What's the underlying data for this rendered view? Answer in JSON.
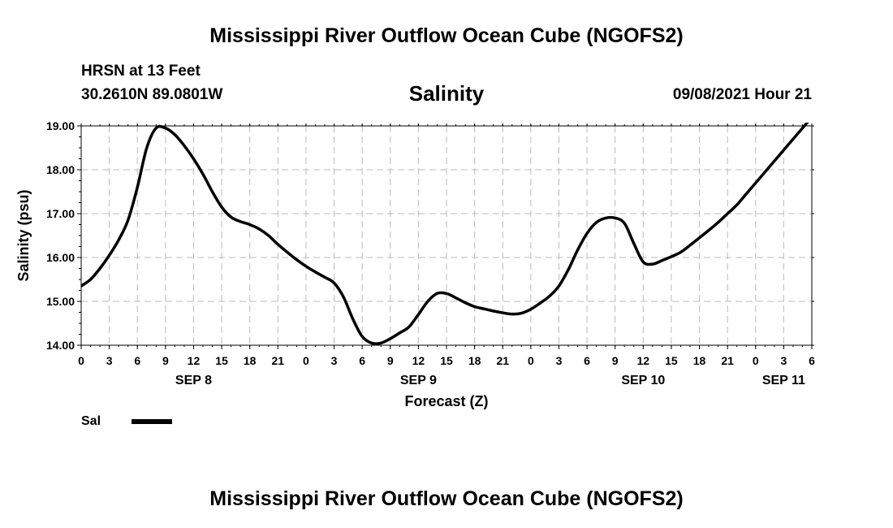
{
  "header": {
    "title": "Mississippi River Outflow Ocean Cube (NGOFS2)",
    "station": "HRSN at 13 Feet",
    "coords": "30.2610N  89.0801W",
    "subtitle": "Salinity",
    "datetime": "09/08/2021 Hour 21"
  },
  "footer": {
    "title": "Mississippi River Outflow Ocean Cube (NGOFS2)"
  },
  "legend": {
    "label": "Sal"
  },
  "chart_data": {
    "type": "line",
    "title": "Salinity",
    "xlabel": "Forecast (Z)",
    "ylabel": "Salinity (psu)",
    "ylim": [
      14.0,
      19.0
    ],
    "xlim": [
      0,
      78
    ],
    "yticks": [
      "14.00",
      "15.00",
      "16.00",
      "17.00",
      "18.00",
      "19.00"
    ],
    "xticks": [
      "0",
      "3",
      "6",
      "9",
      "12",
      "15",
      "18",
      "21",
      "0",
      "3",
      "6",
      "9",
      "12",
      "15",
      "18",
      "21",
      "0",
      "3",
      "6",
      "9",
      "12",
      "15",
      "18",
      "21",
      "0",
      "3",
      "6"
    ],
    "day_labels": [
      {
        "label": "SEP 8",
        "hour": 12
      },
      {
        "label": "SEP 9",
        "hour": 36
      },
      {
        "label": "SEP 10",
        "hour": 60
      },
      {
        "label": "SEP 11",
        "hour": 75
      }
    ],
    "grid": true,
    "series": [
      {
        "name": "Sal",
        "color": "#000000",
        "x": [
          0,
          1,
          2,
          3,
          4,
          5,
          6,
          7,
          8,
          9,
          10,
          11,
          12,
          13,
          14,
          15,
          16,
          17,
          18,
          19,
          20,
          21,
          22,
          23,
          24,
          25,
          26,
          27,
          28,
          29,
          30,
          31,
          32,
          33,
          34,
          35,
          36,
          37,
          38,
          39,
          40,
          41,
          42,
          43,
          44,
          45,
          46,
          47,
          48,
          49,
          50,
          51,
          52,
          53,
          54,
          55,
          56,
          57,
          58,
          59,
          60,
          61,
          62,
          63,
          64,
          65,
          66,
          67,
          68,
          69,
          70,
          71,
          72,
          73,
          74,
          75,
          76,
          77,
          78
        ],
        "values": [
          15.35,
          15.5,
          15.75,
          16.05,
          16.4,
          16.85,
          17.6,
          18.5,
          18.95,
          18.95,
          18.8,
          18.55,
          18.25,
          17.9,
          17.5,
          17.15,
          16.92,
          16.82,
          16.75,
          16.65,
          16.5,
          16.3,
          16.12,
          15.95,
          15.8,
          15.67,
          15.55,
          15.42,
          15.1,
          14.6,
          14.2,
          14.05,
          14.05,
          14.15,
          14.28,
          14.42,
          14.7,
          15.0,
          15.18,
          15.18,
          15.08,
          14.97,
          14.88,
          14.83,
          14.78,
          14.74,
          14.71,
          14.73,
          14.82,
          14.96,
          15.12,
          15.35,
          15.72,
          16.17,
          16.55,
          16.8,
          16.9,
          16.9,
          16.78,
          16.32,
          15.9,
          15.85,
          15.93,
          16.02,
          16.12,
          16.28,
          16.45,
          16.62,
          16.8,
          17.0,
          17.2,
          17.45,
          17.7,
          17.95,
          18.2,
          18.45,
          18.7,
          18.95,
          19.2
        ]
      }
    ]
  }
}
